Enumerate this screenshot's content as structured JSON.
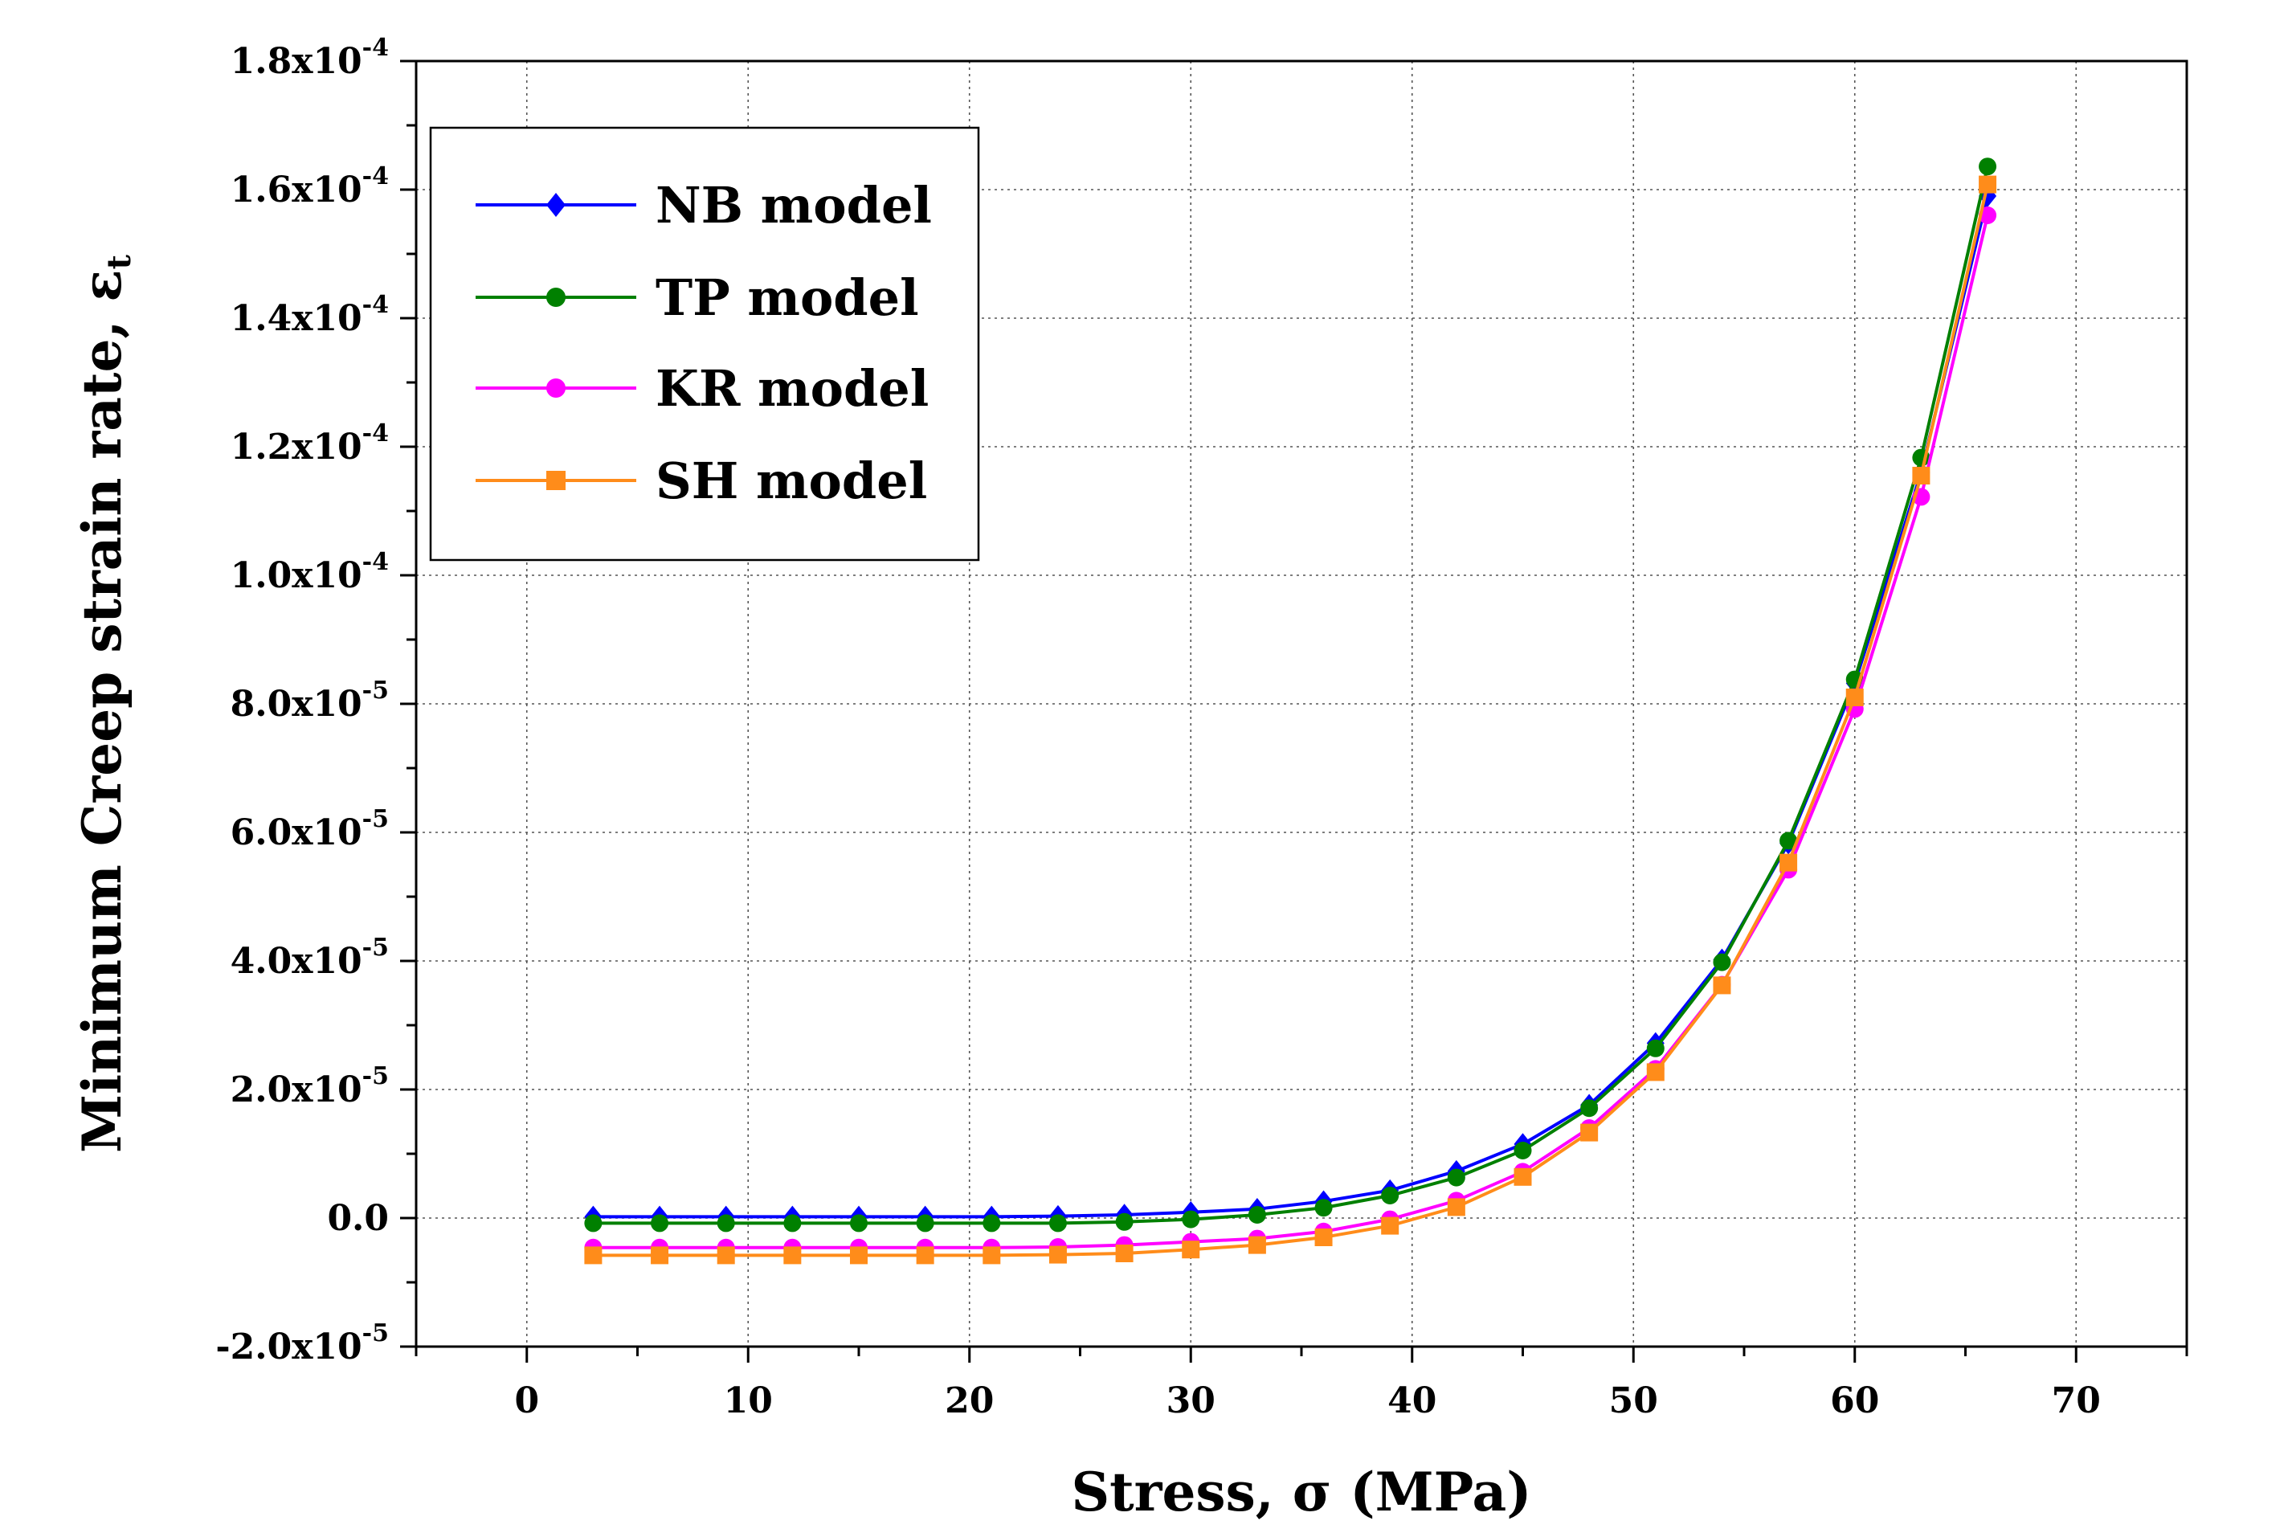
{
  "chart_data": {
    "type": "line",
    "title": "",
    "xlabel": "Stress, σ (MPa)",
    "ylabel": "Minimum Creep strain rate, ε",
    "ylabel_subscript": "t",
    "xlim": [
      -5,
      75
    ],
    "ylim": [
      -2e-05,
      0.00018
    ],
    "grid": true,
    "legend_position": "top-left",
    "x_ticks": [
      0,
      10,
      20,
      30,
      40,
      50,
      60,
      70
    ],
    "x_tick_labels": [
      "0",
      "10",
      "20",
      "30",
      "40",
      "50",
      "60",
      "70"
    ],
    "y_ticks": [
      -2e-05,
      0,
      2e-05,
      4e-05,
      6e-05,
      8e-05,
      0.0001,
      0.00012,
      0.00014,
      0.00016,
      0.00018
    ],
    "y_tick_labels": [
      {
        "mantissa": "-2.0x10",
        "exp": "-5"
      },
      {
        "mantissa": "0.0",
        "exp": ""
      },
      {
        "mantissa": "2.0x10",
        "exp": "-5"
      },
      {
        "mantissa": "4.0x10",
        "exp": "-5"
      },
      {
        "mantissa": "6.0x10",
        "exp": "-5"
      },
      {
        "mantissa": "8.0x10",
        "exp": "-5"
      },
      {
        "mantissa": "1.0x10",
        "exp": "-4"
      },
      {
        "mantissa": "1.2x10",
        "exp": "-4"
      },
      {
        "mantissa": "1.4x10",
        "exp": "-4"
      },
      {
        "mantissa": "1.6x10",
        "exp": "-4"
      },
      {
        "mantissa": "1.8x10",
        "exp": "-4"
      }
    ],
    "x": [
      3,
      6,
      9,
      12,
      15,
      18,
      21,
      24,
      27,
      30,
      33,
      36,
      39,
      42,
      45,
      48,
      51,
      54,
      57,
      60,
      63,
      66
    ],
    "series": [
      {
        "name": "NB model",
        "color": "#0000ff",
        "marker": "diamond",
        "values": [
          2e-07,
          2e-07,
          2e-07,
          2e-07,
          2e-07,
          2e-07,
          2e-07,
          3e-07,
          5e-07,
          9e-07,
          1.4e-06,
          2.6e-06,
          4.3e-06,
          7.3e-06,
          1.15e-05,
          1.76e-05,
          2.72e-05,
          4.02e-05,
          5.83e-05,
          8.32e-05,
          0.000116,
          0.000159
        ]
      },
      {
        "name": "TP model",
        "color": "#008000",
        "marker": "circle",
        "values": [
          -8e-07,
          -8e-07,
          -8e-07,
          -8e-07,
          -8e-07,
          -8e-07,
          -8e-07,
          -8e-07,
          -6e-07,
          -2e-07,
          5e-07,
          1.6e-06,
          3.5e-06,
          6.3e-06,
          1.05e-05,
          1.71e-05,
          2.64e-05,
          3.98e-05,
          5.87e-05,
          8.38e-05,
          0.0001183,
          0.0001636
        ]
      },
      {
        "name": "KR model",
        "color": "#ff00ff",
        "marker": "circle",
        "values": [
          -4.6e-06,
          -4.6e-06,
          -4.6e-06,
          -4.6e-06,
          -4.6e-06,
          -4.6e-06,
          -4.6e-06,
          -4.5e-06,
          -4.2e-06,
          -3.7e-06,
          -3.2e-06,
          -2.1e-06,
          -2e-07,
          2.7e-06,
          7.2e-06,
          1.4e-05,
          2.32e-05,
          3.63e-05,
          5.42e-05,
          7.92e-05,
          0.0001122,
          0.000156
        ]
      },
      {
        "name": "SH model",
        "color": "#ff8c1a",
        "marker": "square",
        "values": [
          -5.8e-06,
          -5.8e-06,
          -5.8e-06,
          -5.8e-06,
          -5.8e-06,
          -5.8e-06,
          -5.8e-06,
          -5.7e-06,
          -5.5e-06,
          -4.9e-06,
          -4.2e-06,
          -3e-06,
          -1.2e-06,
          1.7e-06,
          6.4e-06,
          1.33e-05,
          2.27e-05,
          3.62e-05,
          5.53e-05,
          8.1e-05,
          0.0001155,
          0.0001608
        ]
      }
    ]
  }
}
